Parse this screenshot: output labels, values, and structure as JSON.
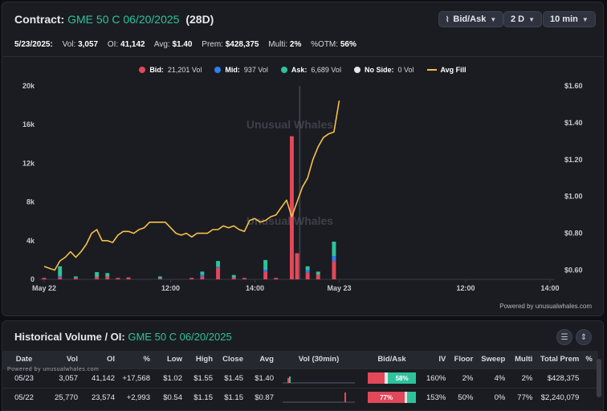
{
  "header": {
    "title_label": "Contract:",
    "contract": "GME 50 C 06/20/2025",
    "dte": "(28D)",
    "controls": [
      {
        "label": "Bid/Ask",
        "icon": "chart-icon"
      },
      {
        "label": "2 D"
      },
      {
        "label": "10 min"
      }
    ]
  },
  "stats": {
    "date": "5/23/2025:",
    "vol_label": "Vol:",
    "vol": "3,057",
    "oi_label": "OI:",
    "oi": "41,142",
    "avg_label": "Avg:",
    "avg": "$1.40",
    "prem_label": "Prem:",
    "prem": "$428,375",
    "multi_label": "Multi:",
    "multi": "2%",
    "otm_label": "%OTM:",
    "otm": "56%"
  },
  "legend": [
    {
      "name": "Bid:",
      "value": "21,201 Vol",
      "color": "#e2485a",
      "shape": "dot"
    },
    {
      "name": "Mid:",
      "value": "937 Vol",
      "color": "#2f7ff0",
      "shape": "dot"
    },
    {
      "name": "Ask:",
      "value": "6,689 Vol",
      "color": "#2ec29b",
      "shape": "dot"
    },
    {
      "name": "No Side:",
      "value": "0 Vol",
      "color": "#e6e7ea",
      "shape": "dot"
    },
    {
      "name": "Avg Fill",
      "value": "",
      "color": "#f5c14b",
      "shape": "line"
    }
  ],
  "chart_data": {
    "type": "bar",
    "y_left": {
      "ticks": [
        "0",
        "4k",
        "8k",
        "12k",
        "16k",
        "20k"
      ],
      "range": [
        0,
        20000
      ]
    },
    "y_right": {
      "ticks": [
        "$0.60",
        "$0.80",
        "$1.00",
        "$1.20",
        "$1.40",
        "$1.60"
      ],
      "range": [
        0.55,
        1.6
      ]
    },
    "x_ticks": [
      "May 22",
      "12:00",
      "14:00",
      "May 23",
      "12:00",
      "14:00"
    ],
    "watermark": "Unusual Whales",
    "bid_bars": [
      [
        0,
        150
      ],
      [
        3,
        200
      ],
      [
        6,
        150
      ],
      [
        10,
        250
      ],
      [
        12,
        300
      ],
      [
        14,
        150
      ],
      [
        16,
        200
      ],
      [
        22,
        100
      ],
      [
        28,
        150
      ],
      [
        30,
        300
      ],
      [
        33,
        1200
      ],
      [
        36,
        200
      ],
      [
        38,
        150
      ],
      [
        42,
        800
      ],
      [
        44,
        150
      ],
      [
        47,
        14800
      ],
      [
        48,
        2700
      ],
      [
        50,
        700
      ],
      [
        52,
        500
      ],
      [
        55,
        1900
      ]
    ],
    "mid_bars": [
      [
        3,
        150
      ],
      [
        30,
        200
      ],
      [
        33,
        100
      ],
      [
        42,
        200
      ],
      [
        50,
        250
      ],
      [
        55,
        500
      ]
    ],
    "ask_bars": [
      [
        3,
        1000
      ],
      [
        6,
        150
      ],
      [
        10,
        500
      ],
      [
        12,
        350
      ],
      [
        22,
        200
      ],
      [
        30,
        300
      ],
      [
        33,
        600
      ],
      [
        36,
        250
      ],
      [
        42,
        1000
      ],
      [
        50,
        400
      ],
      [
        52,
        300
      ],
      [
        55,
        1500
      ]
    ],
    "avg_fill": [
      [
        0,
        0.62
      ],
      [
        1,
        0.61
      ],
      [
        2,
        0.6
      ],
      [
        3,
        0.65
      ],
      [
        4,
        0.67
      ],
      [
        5,
        0.7
      ],
      [
        6,
        0.67
      ],
      [
        7,
        0.7
      ],
      [
        8,
        0.74
      ],
      [
        9,
        0.8
      ],
      [
        10,
        0.82
      ],
      [
        11,
        0.76
      ],
      [
        12,
        0.76
      ],
      [
        13,
        0.75
      ],
      [
        14,
        0.79
      ],
      [
        15,
        0.81
      ],
      [
        16,
        0.81
      ],
      [
        17,
        0.8
      ],
      [
        18,
        0.82
      ],
      [
        19,
        0.83
      ],
      [
        20,
        0.86
      ],
      [
        21,
        0.86
      ],
      [
        22,
        0.86
      ],
      [
        23,
        0.86
      ],
      [
        24,
        0.83
      ],
      [
        25,
        0.8
      ],
      [
        26,
        0.79
      ],
      [
        27,
        0.8
      ],
      [
        28,
        0.78
      ],
      [
        29,
        0.8
      ],
      [
        30,
        0.8
      ],
      [
        31,
        0.8
      ],
      [
        32,
        0.82
      ],
      [
        33,
        0.82
      ],
      [
        34,
        0.84
      ],
      [
        35,
        0.83
      ],
      [
        36,
        0.84
      ],
      [
        37,
        0.82
      ],
      [
        38,
        0.81
      ],
      [
        39,
        0.87
      ],
      [
        40,
        0.88
      ],
      [
        41,
        0.86
      ],
      [
        42,
        0.87
      ],
      [
        43,
        0.89
      ],
      [
        44,
        0.9
      ],
      [
        45,
        0.94
      ],
      [
        46,
        0.98
      ],
      [
        47,
        0.89
      ],
      [
        48,
        0.97
      ],
      [
        49,
        1.05
      ],
      [
        50,
        1.1
      ],
      [
        51,
        1.2
      ],
      [
        52,
        1.27
      ],
      [
        53,
        1.32
      ],
      [
        54,
        1.34
      ],
      [
        55,
        1.35
      ],
      [
        56,
        1.52
      ]
    ],
    "slots": 96,
    "divider_slot": 48.5,
    "x_tick_slots": [
      0,
      24,
      40,
      56,
      80,
      96
    ]
  },
  "powered_by": "Powered by unusualwhales.com",
  "historical": {
    "title_label": "Historical Volume / OI:",
    "contract": "GME 50 C 06/20/2025",
    "powered_small": "Powered by unusualwhales.com",
    "columns": [
      "Date",
      "Vol",
      "OI",
      "%",
      "Low",
      "High",
      "Close",
      "Avg",
      "Vol (30min)",
      "Bid/Ask",
      "IV",
      "Floor",
      "Sweep",
      "Multi",
      "Total Prem",
      "%"
    ],
    "rows": [
      {
        "date": "05/23",
        "vol": "3,057",
        "oi": "41,142",
        "chg": "+17,568",
        "low": "$1.02",
        "high": "$1.55",
        "close": "$1.45",
        "avg": "$1.40",
        "bid_pct": 0.35,
        "ask_pct": 0.58,
        "ba_label": "58%",
        "ba_side": "ask",
        "iv": "160%",
        "floor": "2%",
        "sweep": "4%",
        "multi": "2%",
        "prem": "$428,375"
      },
      {
        "date": "05/22",
        "vol": "25,770",
        "oi": "23,574",
        "chg": "+2,993",
        "low": "$0.54",
        "high": "$1.15",
        "close": "$1.15",
        "avg": "$0.87",
        "bid_pct": 0.77,
        "ask_pct": 0.18,
        "ba_label": "77%",
        "ba_side": "bid",
        "iv": "153%",
        "floor": "50%",
        "sweep": "0%",
        "multi": "77%",
        "prem": "$2,240,079"
      }
    ]
  }
}
